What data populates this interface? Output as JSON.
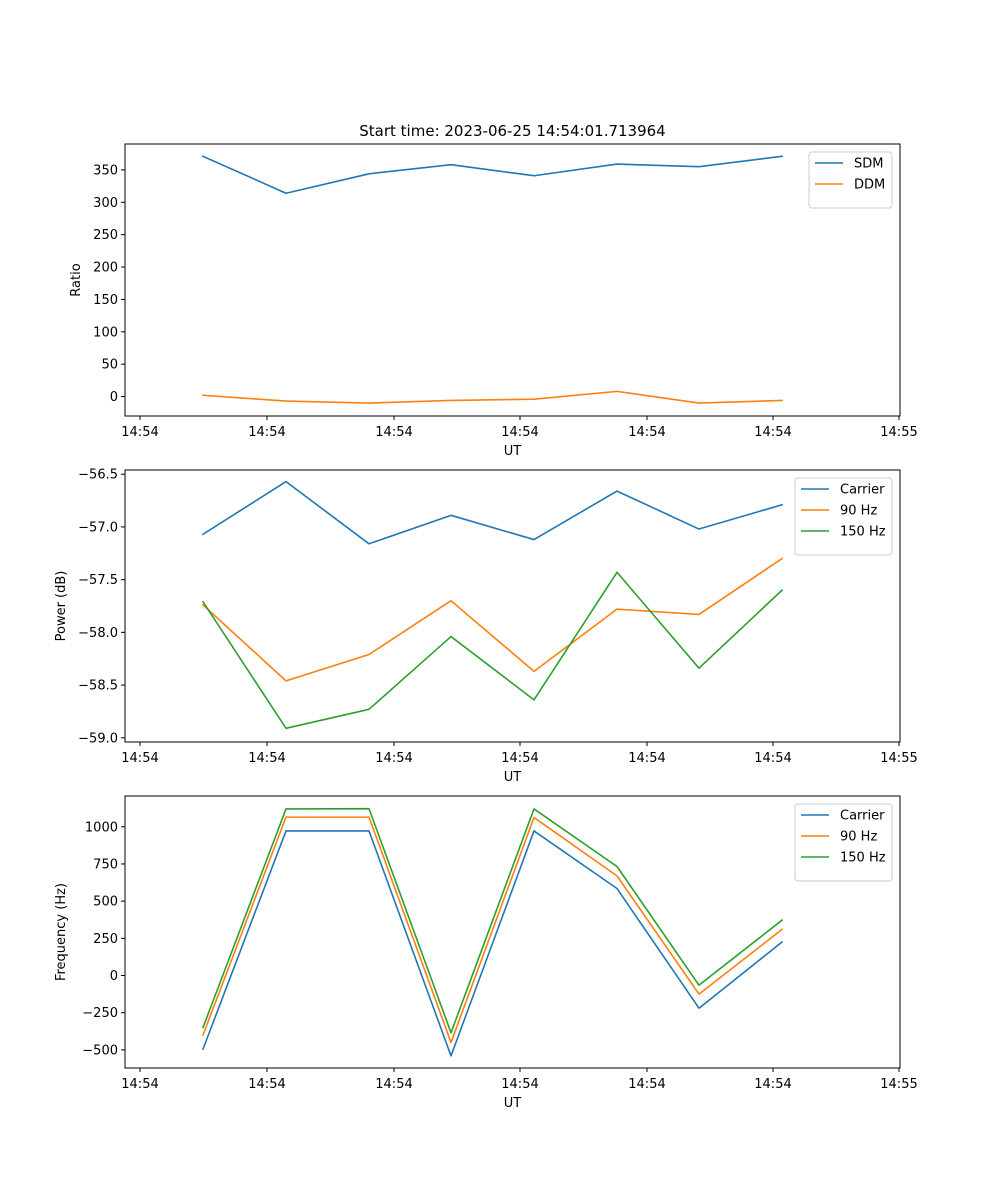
{
  "figure": {
    "title": "Start time: 2023-06-25 14:54:01.713964"
  },
  "colors": {
    "blue": "#1f77b4",
    "orange": "#ff7f0e",
    "green": "#2ca02c"
  },
  "chart_data": [
    {
      "type": "line",
      "title": "Start time: 2023-06-25 14:54:01.713964",
      "xlabel": "UT",
      "ylabel": "Ratio",
      "x_tick_labels": [
        "14:54",
        "14:54",
        "14:54",
        "14:54",
        "14:54",
        "14:54",
        "14:55"
      ],
      "y_ticks": [
        0,
        50,
        100,
        150,
        200,
        250,
        300,
        350
      ],
      "ylim": [
        -30,
        390
      ],
      "legend_position": "upper right",
      "grid": false,
      "series": [
        {
          "name": "SDM",
          "color": "#1f77b4",
          "values": [
            371,
            314,
            344,
            358,
            341,
            359,
            355,
            371
          ]
        },
        {
          "name": "DDM",
          "color": "#ff7f0e",
          "values": [
            2,
            -7,
            -10,
            -6,
            -4,
            8,
            -10,
            -6
          ]
        }
      ]
    },
    {
      "type": "line",
      "title": "",
      "xlabel": "UT",
      "ylabel": "Power (dB)",
      "x_tick_labels": [
        "14:54",
        "14:54",
        "14:54",
        "14:54",
        "14:54",
        "14:54",
        "14:55"
      ],
      "y_ticks": [
        -59.0,
        -58.5,
        -58.0,
        -57.5,
        -57.0,
        -56.5
      ],
      "y_tick_labels": [
        "−59.0",
        "−58.5",
        "−58.0",
        "−57.5",
        "−57.0",
        "−56.5"
      ],
      "ylim": [
        -59.04,
        -56.46
      ],
      "legend_position": "upper right",
      "grid": false,
      "series": [
        {
          "name": "Carrier",
          "color": "#1f77b4",
          "values": [
            -57.07,
            -56.57,
            -57.16,
            -56.89,
            -57.12,
            -56.66,
            -57.02,
            -56.79
          ]
        },
        {
          "name": "90 Hz",
          "color": "#ff7f0e",
          "values": [
            -57.74,
            -58.46,
            -58.21,
            -57.7,
            -58.37,
            -57.78,
            -57.83,
            -57.3
          ]
        },
        {
          "name": "150 Hz",
          "color": "#2ca02c",
          "values": [
            -57.71,
            -58.91,
            -58.73,
            -58.04,
            -58.64,
            -57.43,
            -58.34,
            -57.6
          ]
        }
      ]
    },
    {
      "type": "line",
      "title": "",
      "xlabel": "UT",
      "ylabel": "Frequency (Hz)",
      "x_tick_labels": [
        "14:54",
        "14:54",
        "14:54",
        "14:54",
        "14:54",
        "14:54",
        "14:55"
      ],
      "y_ticks": [
        -500,
        -250,
        0,
        250,
        500,
        750,
        1000
      ],
      "y_tick_labels": [
        "−500",
        "−250",
        "0",
        "250",
        "500",
        "750",
        "1000"
      ],
      "ylim": [
        -622,
        1207
      ],
      "legend_position": "upper right",
      "grid": false,
      "series": [
        {
          "name": "Carrier",
          "color": "#1f77b4",
          "values": [
            -495,
            972,
            972,
            -540,
            972,
            585,
            -220,
            225
          ]
        },
        {
          "name": "90 Hz",
          "color": "#ff7f0e",
          "values": [
            -400,
            1065,
            1065,
            -450,
            1062,
            670,
            -125,
            310
          ]
        },
        {
          "name": "150 Hz",
          "color": "#2ca02c",
          "values": [
            -350,
            1120,
            1122,
            -385,
            1120,
            733,
            -65,
            372
          ]
        }
      ]
    }
  ]
}
